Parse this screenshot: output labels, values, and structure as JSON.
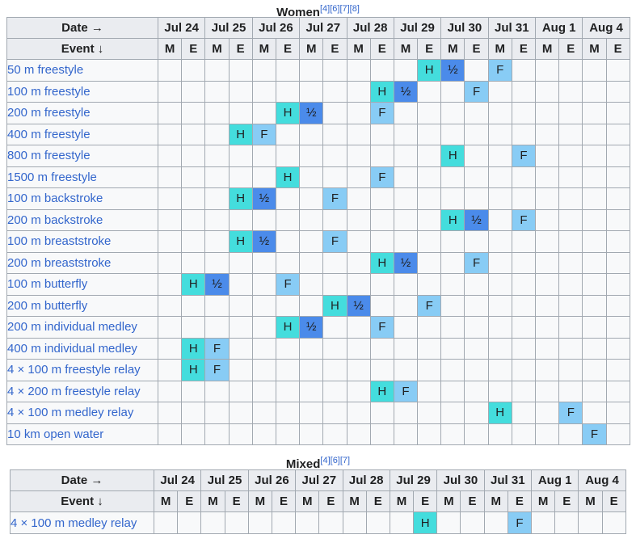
{
  "legend_colors": {
    "H": "#44dddd",
    "semi": "#4b8bea",
    "F": "#88ccf5",
    "empty": "#f8f9fa",
    "header": "#eaecf0",
    "link": "#3366cc"
  },
  "women": {
    "title": "Women",
    "refs": "[4][6][7][8]",
    "date_header": "Date →",
    "event_header": "Event ↓",
    "dates": [
      "Jul 24",
      "Jul 25",
      "Jul 26",
      "Jul 27",
      "Jul 28",
      "Jul 29",
      "Jul 30",
      "Jul 31",
      "Aug 1",
      "Aug 4"
    ],
    "session_labels": [
      "M",
      "E"
    ],
    "rows": [
      {
        "event": "50 m freestyle",
        "cells": [
          "",
          "",
          "",
          "",
          "",
          "",
          "",
          "",
          "",
          "",
          "",
          "H",
          "½",
          "",
          "F",
          "",
          "",
          "",
          "",
          ""
        ]
      },
      {
        "event": "100 m freestyle",
        "cells": [
          "",
          "",
          "",
          "",
          "",
          "",
          "",
          "",
          "",
          "H",
          "½",
          "",
          "",
          "F",
          "",
          "",
          "",
          "",
          "",
          ""
        ]
      },
      {
        "event": "200 m freestyle",
        "cells": [
          "",
          "",
          "",
          "",
          "",
          "H",
          "½",
          "",
          "",
          "F",
          "",
          "",
          "",
          "",
          "",
          "",
          "",
          "",
          "",
          ""
        ]
      },
      {
        "event": "400 m freestyle",
        "cells": [
          "",
          "",
          "",
          "H",
          "F",
          "",
          "",
          "",
          "",
          "",
          "",
          "",
          "",
          "",
          "",
          "",
          "",
          "",
          "",
          ""
        ]
      },
      {
        "event": "800 m freestyle",
        "cells": [
          "",
          "",
          "",
          "",
          "",
          "",
          "",
          "",
          "",
          "",
          "",
          "",
          "H",
          "",
          "",
          "F",
          "",
          "",
          "",
          ""
        ]
      },
      {
        "event": "1500 m freestyle",
        "cells": [
          "",
          "",
          "",
          "",
          "",
          "H",
          "",
          "",
          "",
          "F",
          "",
          "",
          "",
          "",
          "",
          "",
          "",
          "",
          "",
          ""
        ]
      },
      {
        "event": "100 m backstroke",
        "cells": [
          "",
          "",
          "",
          "H",
          "½",
          "",
          "",
          "F",
          "",
          "",
          "",
          "",
          "",
          "",
          "",
          "",
          "",
          "",
          "",
          ""
        ]
      },
      {
        "event": "200 m backstroke",
        "cells": [
          "",
          "",
          "",
          "",
          "",
          "",
          "",
          "",
          "",
          "",
          "",
          "",
          "H",
          "½",
          "",
          "F",
          "",
          "",
          "",
          ""
        ]
      },
      {
        "event": "100 m breaststroke",
        "cells": [
          "",
          "",
          "",
          "H",
          "½",
          "",
          "",
          "F",
          "",
          "",
          "",
          "",
          "",
          "",
          "",
          "",
          "",
          "",
          "",
          ""
        ]
      },
      {
        "event": "200 m breaststroke",
        "cells": [
          "",
          "",
          "",
          "",
          "",
          "",
          "",
          "",
          "",
          "H",
          "½",
          "",
          "",
          "F",
          "",
          "",
          "",
          "",
          "",
          ""
        ]
      },
      {
        "event": "100 m butterfly",
        "cells": [
          "",
          "H",
          "½",
          "",
          "",
          "F",
          "",
          "",
          "",
          "",
          "",
          "",
          "",
          "",
          "",
          "",
          "",
          "",
          "",
          ""
        ]
      },
      {
        "event": "200 m butterfly",
        "cells": [
          "",
          "",
          "",
          "",
          "",
          "",
          "",
          "H",
          "½",
          "",
          "",
          "F",
          "",
          "",
          "",
          "",
          "",
          "",
          "",
          ""
        ]
      },
      {
        "event": "200 m individual medley",
        "cells": [
          "",
          "",
          "",
          "",
          "",
          "H",
          "½",
          "",
          "",
          "F",
          "",
          "",
          "",
          "",
          "",
          "",
          "",
          "",
          "",
          ""
        ]
      },
      {
        "event": "400 m individual medley",
        "cells": [
          "",
          "H",
          "F",
          "",
          "",
          "",
          "",
          "",
          "",
          "",
          "",
          "",
          "",
          "",
          "",
          "",
          "",
          "",
          "",
          ""
        ]
      },
      {
        "event": "4 × 100 m freestyle relay",
        "cells": [
          "",
          "H",
          "F",
          "",
          "",
          "",
          "",
          "",
          "",
          "",
          "",
          "",
          "",
          "",
          "",
          "",
          "",
          "",
          "",
          ""
        ]
      },
      {
        "event": "4 × 200 m freestyle relay",
        "cells": [
          "",
          "",
          "",
          "",
          "",
          "",
          "",
          "",
          "",
          "H",
          "F",
          "",
          "",
          "",
          "",
          "",
          "",
          "",
          "",
          ""
        ]
      },
      {
        "event": "4 × 100 m medley relay",
        "cells": [
          "",
          "",
          "",
          "",
          "",
          "",
          "",
          "",
          "",
          "",
          "",
          "",
          "",
          "",
          "H",
          "",
          "",
          "F",
          "",
          ""
        ]
      },
      {
        "event": "10 km open water",
        "cells": [
          "",
          "",
          "",
          "",
          "",
          "",
          "",
          "",
          "",
          "",
          "",
          "",
          "",
          "",
          "",
          "",
          "",
          "",
          "F",
          ""
        ]
      }
    ]
  },
  "mixed": {
    "title": "Mixed",
    "refs": "[4][6][7]",
    "date_header": "Date →",
    "event_header": "Event ↓",
    "dates": [
      "Jul 24",
      "Jul 25",
      "Jul 26",
      "Jul 27",
      "Jul 28",
      "Jul 29",
      "Jul 30",
      "Jul 31",
      "Aug 1",
      "Aug 4"
    ],
    "session_labels": [
      "M",
      "E"
    ],
    "rows": [
      {
        "event": "4 × 100 m medley relay",
        "cells": [
          "",
          "",
          "",
          "",
          "",
          "",
          "",
          "",
          "",
          "",
          "",
          "H",
          "",
          "",
          "",
          "F",
          "",
          "",
          "",
          ""
        ]
      }
    ]
  }
}
